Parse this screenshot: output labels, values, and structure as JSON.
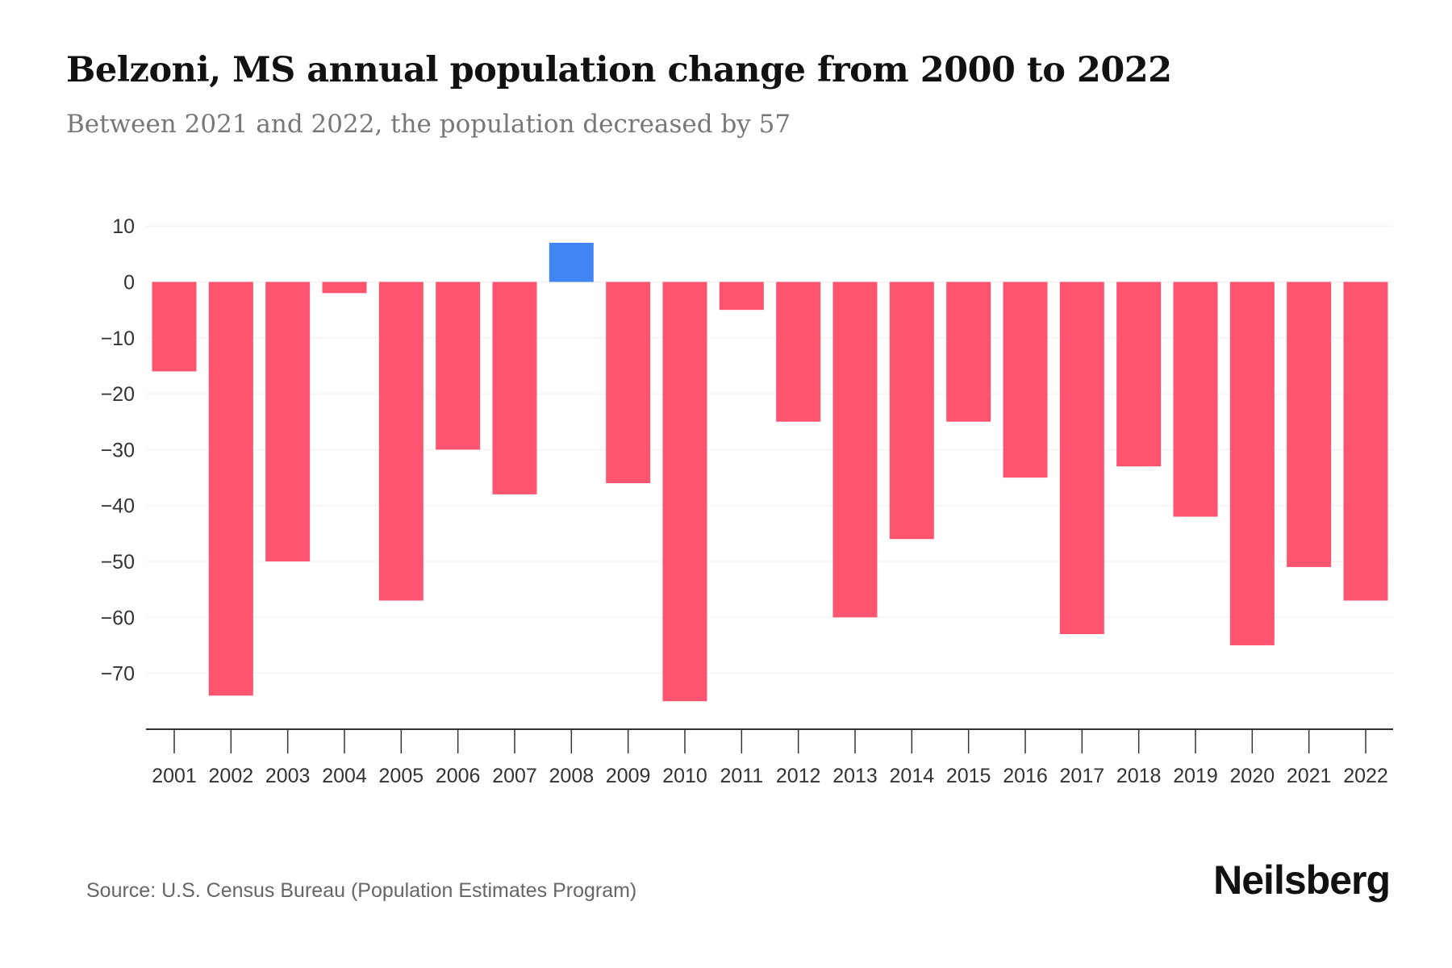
{
  "title": "Belzoni, MS annual population change from 2000 to 2022",
  "subtitle": "Between 2021 and 2022, the population decreased by 57",
  "source": "Source: U.S. Census Bureau (Population Estimates Program)",
  "logo": "Neilsberg",
  "colors": {
    "negative": "#FF5470",
    "positive": "#4285F4"
  },
  "chart_data": {
    "type": "bar",
    "title": "Belzoni, MS annual population change from 2000 to 2022",
    "xlabel": "",
    "ylabel": "",
    "categories": [
      "2001",
      "2002",
      "2003",
      "2004",
      "2005",
      "2006",
      "2007",
      "2008",
      "2009",
      "2010",
      "2011",
      "2012",
      "2013",
      "2014",
      "2015",
      "2016",
      "2017",
      "2018",
      "2019",
      "2020",
      "2021",
      "2022"
    ],
    "values": [
      -16,
      -74,
      -50,
      -2,
      -57,
      -30,
      -38,
      7,
      -36,
      -75,
      -5,
      -25,
      -60,
      -46,
      -25,
      -35,
      -63,
      -33,
      -42,
      -65,
      -51,
      -57
    ],
    "yticks": [
      10,
      0,
      -10,
      -20,
      -30,
      -40,
      -50,
      -60,
      -70
    ],
    "ytick_labels": [
      "10",
      "0",
      "−10",
      "−20",
      "−30",
      "−40",
      "−50",
      "−60",
      "−70"
    ],
    "ylim": [
      -80,
      10
    ],
    "grid": true
  }
}
